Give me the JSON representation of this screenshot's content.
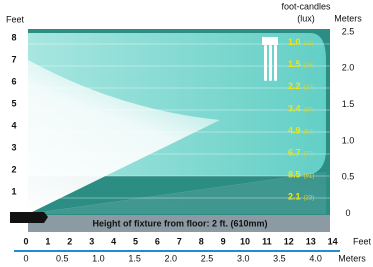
{
  "header": {
    "feet_label": "Feet",
    "fc_label": "foot-candles",
    "lux_label": "(lux)",
    "meters_label": "Meters"
  },
  "left_ticks": [
    "8",
    "7",
    "6",
    "5",
    "4",
    "3",
    "2",
    "1"
  ],
  "readings": [
    {
      "fc": "1.0",
      "lux": "(11)"
    },
    {
      "fc": "1.5",
      "lux": "(16)"
    },
    {
      "fc": "2.2",
      "lux": "(24)"
    },
    {
      "fc": "3.4",
      "lux": "(37)"
    },
    {
      "fc": "4.9",
      "lux": "(53)"
    },
    {
      "fc": "6.7",
      "lux": "(72)"
    },
    {
      "fc": "8.5",
      "lux": "(91)"
    },
    {
      "fc": "2.1",
      "lux": "(23)"
    }
  ],
  "right_ticks": [
    "2.5",
    "2.0",
    "1.5",
    "1.0",
    "0.5",
    "0"
  ],
  "footer": "Height of fixture from floor: 2 ft. (610mm)",
  "bottom_feet": {
    "label": "Feet",
    "ticks": [
      "0",
      "1",
      "2",
      "3",
      "4",
      "5",
      "6",
      "7",
      "8",
      "9",
      "10",
      "11",
      "12",
      "13",
      "14"
    ]
  },
  "bottom_meters": {
    "label": "Meters",
    "ticks": [
      "0",
      "0.5",
      "1.0",
      "1.5",
      "2.0",
      "2.5",
      "3.0",
      "3.5",
      "4.0"
    ]
  }
}
